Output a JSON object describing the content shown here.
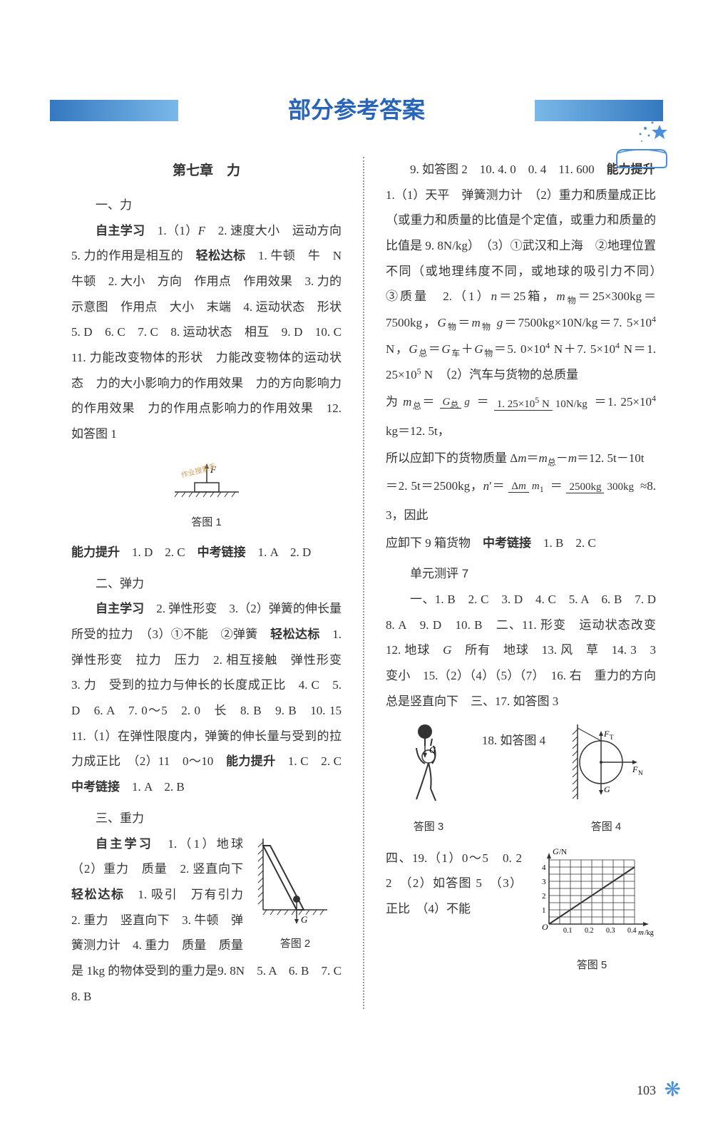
{
  "header": {
    "main_title": "部分参考答案"
  },
  "left_column": {
    "chapter": "第七章　力",
    "sec1_title": "一、力",
    "sec1_body": "<span class='bold'>自主学习</span>　1.（1）<i>F</i>　2. 速度大小　运动方向　5. 力的作用是相互的　<span class='bold'>轻松达标</span>　1. 牛顿　牛　N　牛顿　2. 大小　方向　作用点　作用效果　3. 力的示意图　作用点　大小　末端　4. 运动状态　形状　5. D　6. C　7. C　8. 运动状态　相互　9. D　10. C　11. 力能改变物体的形状　力能改变物体的运动状态　力的大小影响力的作用效果　力的方向影响力的作用效果　力的作用点影响力的作用效果　12. 如答图 1",
    "fig1_label": "答图 1",
    "sec1_tail": "<span class='bold'>能力提升</span>　1. D　2. C　<span class='bold'>中考链接</span>　1. A　2. D",
    "sec2_title": "二、弹力",
    "sec2_body": "<span class='bold'>自主学习</span>　2. 弹性形变　3.（2）弹簧的伸长量　所受的拉力　（3）①不能　②弹簧　<span class='bold'>轻松达标</span>　1. 弹性形变　拉力　压力　2. 相互接触　弹性形变　3. 力　受到的拉力与伸长的长度成正比　4. C　5. D　6. A　7. 0～5　2. 0　长　8. B　9. B　10. 15　11.（1）在弹性限度内，弹簧的伸长量与受到的拉力成正比　（2）11　0～10　<span class='bold'>能力提升</span>　1. C　2. C　<span class='bold'>中考链接</span>　1. A　2. B",
    "sec3_title": "三、重力",
    "sec3_body": "<span class='bold'>自主学习</span>　1.（1）地球　（2）重力　质量　2. 竖直向下　<span class='bold'>轻松达标</span>　1. 吸引　万有引力　2. 重力　竖直向下　3. 牛顿　弹簧测力计　4. 重力　质量　质量是 1kg 的物体受到的重力是9. 8N　5. A　6. B　7. C　8. B",
    "fig2_label": "答图 2"
  },
  "right_column": {
    "para1": "9. 如答图 2　10. 4. 0　0. 4　11. 600　<span class='bold'>能力提升</span>　1.（1）天平　弹簧测力计　（2）重力和质量成正比（或重力和质量的比值是个定值，或重力和质量的比值是 9. 8N/kg）　（3）①武汉和上海　②地理位置不同（或地理纬度不同，或地球的吸引力不同）　③质量　2.（1）<i>n</i>＝25箱，<i>m</i><span class='sub'>物</span>＝25×300kg＝7500kg，<i>G</i><span class='sub'>物</span>＝<i>m</i><span class='sub'>物</span> <i>g</i>＝7500kg×10N/kg＝7. 5×10<span class='sup'>4</span> N，<i>G</i><span class='sub'>总</span>＝<i>G</i><span class='sub'>车</span>＋<i>G</i><span class='sub'>物</span>＝5. 0×10<span class='sup'>4</span> N＋7. 5×10<span class='sup'>4</span> N＝1. 25×10<span class='sup'>5</span> N　（2）汽车与货物的总质量",
    "formula1_prefix": "为 <i>m</i><span class='sub'>总</span>＝",
    "formula1_num1": "<i>G</i><span class='sub'>总</span>",
    "formula1_den1": "<i>g</i>",
    "formula1_eq": "＝",
    "formula1_num2": "1. 25×10<span class='sup'>5</span> N",
    "formula1_den2": "10N/kg",
    "formula1_suffix": "＝1. 25×10<span class='sup'>4</span> kg＝12. 5t，",
    "para2": "所以应卸下的货物质量 Δ<i>m</i>＝<i>m</i><span class='sub'>总</span>－<i>m</i>＝12. 5t－10t",
    "formula2_prefix": "＝2. 5t＝2500kg，<i>n</i>′＝",
    "formula2_num": "Δ<i>m</i>",
    "formula2_den": "<i>m</i><span class='sub'>1</span>",
    "formula2_eq": "＝",
    "formula2_num2": "2500kg",
    "formula2_den2": "300kg",
    "formula2_suffix": "≈8. 3，因此",
    "para3": "应卸下 9 箱货物　<span class='bold'>中考链接</span>　1. B　2. C",
    "unit_title": "单元测评 7",
    "unit_body": "一、1. B　2. C　3. D　4. C　5. A　6. B　7. D　8. A　9. D　10. B　二、11. 形变　运动状态改变　12. 地球　<i>G</i>　所有　地球　13. 风　草　14. 3　3　变小　15.（2）（4）（5）（7）　16. 右　重力的方向总是竖直向下　三、17. 如答图 3",
    "fig_inline": "18. 如答图 4",
    "fig3_label": "答图 3",
    "fig4_label": "答图 4",
    "unit_tail": "四、19.（1）0～5　0. 2　2　（2）如答图 5　（3）正比　（4）不能",
    "fig5_label": "答图 5",
    "fig5_ylabel": "G/N",
    "fig5_xlabel": "m/kg",
    "fig5_yticks": [
      "4",
      "3",
      "2",
      "1"
    ],
    "fig5_xticks": [
      "0.1",
      "0.2",
      "0.3",
      "0.4"
    ]
  },
  "page_number": "103",
  "colors": {
    "title_blue": "#2865b8",
    "banner_blue": "#4a90d9"
  }
}
